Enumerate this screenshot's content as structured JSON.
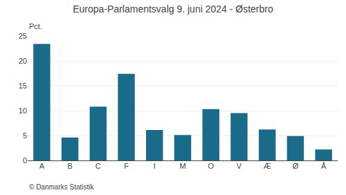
{
  "chart_data": {
    "type": "bar",
    "title": "Europa-Parlamentsvalg 9. juni 2024 - Østerbro",
    "categories": [
      "A",
      "B",
      "C",
      "F",
      "I",
      "M",
      "O",
      "V",
      "Æ",
      "Ø",
      "Å"
    ],
    "values": [
      23.4,
      4.6,
      10.8,
      17.4,
      6.1,
      5.1,
      10.3,
      9.5,
      6.2,
      4.9,
      2.2
    ],
    "color": "#1a6b8a",
    "ylim": [
      0,
      25
    ],
    "yticks": [
      0,
      5,
      10,
      15,
      20,
      25
    ],
    "ylabel": "Pct.",
    "annotations": [
      "© Danmarks Statistik"
    ],
    "grid": true
  }
}
